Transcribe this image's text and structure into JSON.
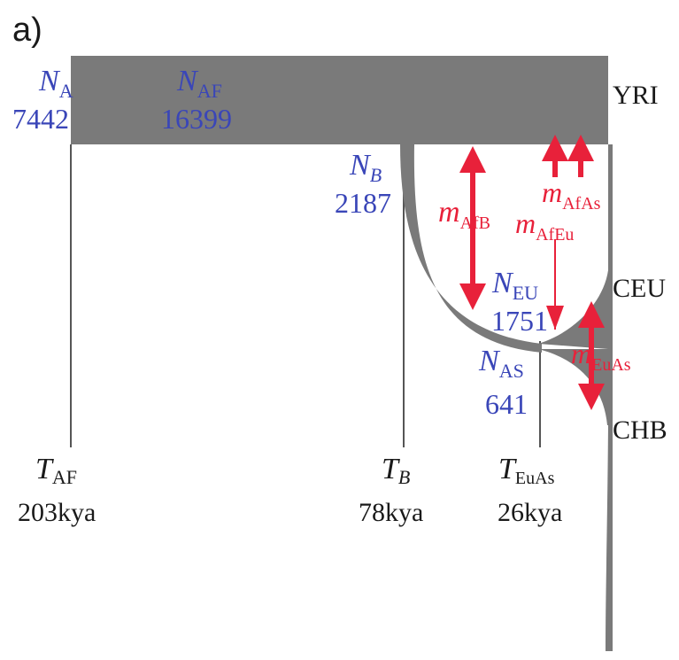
{
  "panel_label": "a)",
  "colors": {
    "band": "#7a7a7a",
    "blue": "#3a46b8",
    "red": "#e8213a",
    "black": "#1a1a1a",
    "line": "#555555"
  },
  "populations": {
    "yri": "YRI",
    "ceu": "CEU",
    "chb": "CHB"
  },
  "sizes": {
    "na": {
      "sym": "N",
      "sub": "A",
      "value": "7442"
    },
    "naf": {
      "sym": "N",
      "sub": "AF",
      "value": "16399"
    },
    "nb": {
      "sym": "N",
      "sub": "B",
      "value": "2187"
    },
    "neu": {
      "sym": "N",
      "sub": "EU",
      "value": "1751"
    },
    "nas": {
      "sym": "N",
      "sub": "AS",
      "value": "641"
    }
  },
  "migrations": {
    "afb": {
      "sym": "m",
      "sub": "AfB"
    },
    "afeu": {
      "sym": "m",
      "sub": "AfEu"
    },
    "afas": {
      "sym": "m",
      "sub": "AfAs"
    },
    "euas": {
      "sym": "m",
      "sub": "EuAs"
    }
  },
  "times": {
    "taf": {
      "sym": "T",
      "sub": "AF",
      "value": "203kya"
    },
    "tb": {
      "sym": "T",
      "sub": "B",
      "value": "78kya"
    },
    "teas": {
      "sym": "T",
      "sub": "EuAs",
      "value": "26kya"
    }
  }
}
